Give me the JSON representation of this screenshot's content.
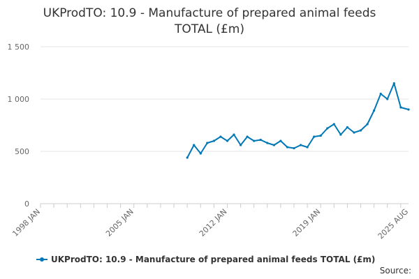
{
  "chart_data": {
    "type": "line",
    "title_line1": "UKProdTO: 10.9 - Manufacture of prepared animal feeds",
    "title_line2": "TOTAL (£m)",
    "xlabel": "",
    "ylabel": "",
    "ylim": [
      0,
      1500
    ],
    "y_ticks": [
      {
        "value": 0,
        "label": "0"
      },
      {
        "value": 500,
        "label": "500"
      },
      {
        "value": 1000,
        "label": "1 000"
      },
      {
        "value": 1500,
        "label": "1 500"
      }
    ],
    "x_range": [
      "1998 JAN",
      "2025 AUG"
    ],
    "x_ticks": [
      "1998 JAN",
      "2005 JAN",
      "2012 JAN",
      "2019 JAN",
      "2025 AUG"
    ],
    "grid": true,
    "color": "#0077b6",
    "series": [
      {
        "name": "UKProdTO: 10.9 - Manufacture of prepared animal feeds TOTAL (£m)",
        "x": [
          "2009 JAN",
          "2009 JUL",
          "2010 JAN",
          "2010 JUL",
          "2011 JAN",
          "2011 JUL",
          "2012 JAN",
          "2012 JUL",
          "2013 JAN",
          "2013 JUL",
          "2014 JAN",
          "2014 JUL",
          "2015 JAN",
          "2015 JUL",
          "2016 JAN",
          "2016 JUL",
          "2017 JAN",
          "2017 JUL",
          "2018 JAN",
          "2018 JUL",
          "2019 JAN",
          "2019 JUL",
          "2020 JAN",
          "2020 JUL",
          "2021 JAN",
          "2021 JUL",
          "2022 JAN",
          "2022 JUL",
          "2023 JAN",
          "2023 JUL",
          "2024 JAN",
          "2024 JUL",
          "2025 JAN",
          "2025 AUG"
        ],
        "values": [
          440,
          560,
          480,
          580,
          600,
          640,
          600,
          660,
          560,
          640,
          600,
          610,
          580,
          560,
          600,
          540,
          530,
          560,
          540,
          640,
          650,
          720,
          760,
          660,
          730,
          680,
          700,
          760,
          890,
          1050,
          1000,
          1150,
          920,
          900
        ]
      }
    ]
  },
  "legend": {
    "label": "UKProdTO: 10.9 - Manufacture of prepared animal feeds TOTAL (£m)"
  },
  "footer": {
    "source_label": "Source:"
  }
}
